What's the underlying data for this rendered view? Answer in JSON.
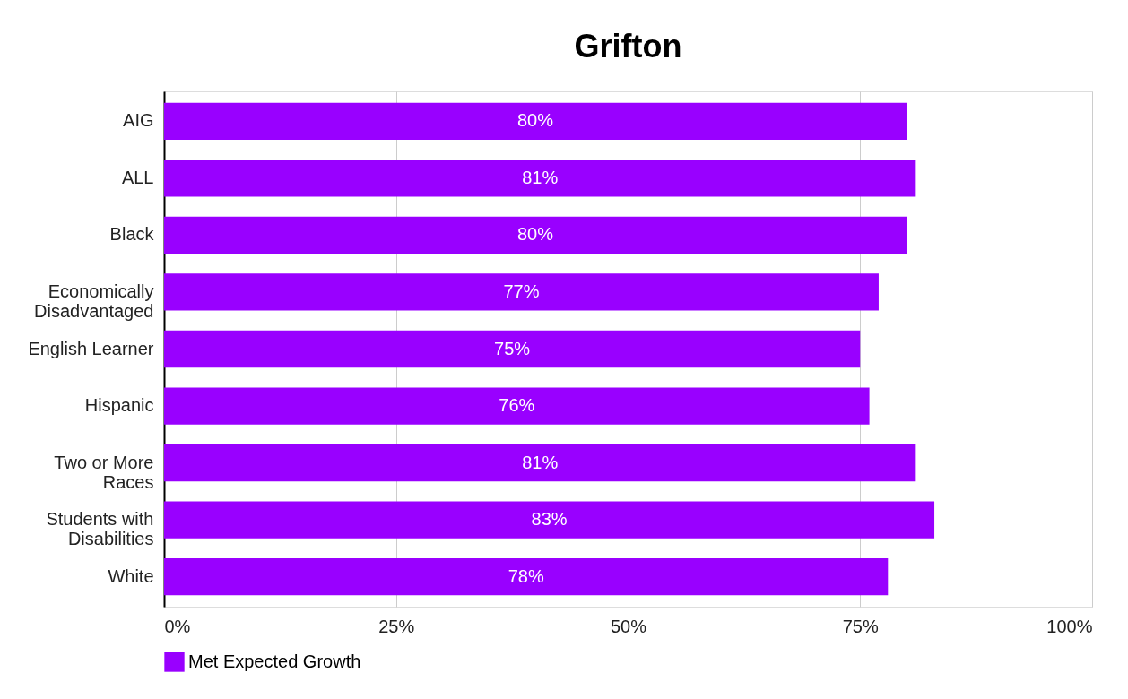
{
  "chart_data": {
    "type": "bar",
    "orientation": "horizontal",
    "title": "Grifton",
    "categories": [
      "AIG",
      "ALL",
      "Black",
      "Economically Disadvantaged",
      "English Learner",
      "Hispanic",
      "Two or More Races",
      "Students with Disabilities",
      "White"
    ],
    "series": [
      {
        "name": "Met Expected Growth",
        "color": "#9900ff",
        "values": [
          80,
          81,
          80,
          77,
          75,
          76,
          81,
          83,
          78
        ],
        "value_labels": [
          "80%",
          "81%",
          "80%",
          "77%",
          "75%",
          "76%",
          "81%",
          "83%",
          "78%"
        ]
      }
    ],
    "xlim": [
      0,
      100
    ],
    "xticks": [
      {
        "value": 0,
        "label": "0%"
      },
      {
        "value": 25,
        "label": "25%"
      },
      {
        "value": 50,
        "label": "50%"
      },
      {
        "value": 75,
        "label": "75%"
      },
      {
        "value": 100,
        "label": "100%"
      }
    ],
    "grid": "x",
    "legend": "bottom"
  }
}
